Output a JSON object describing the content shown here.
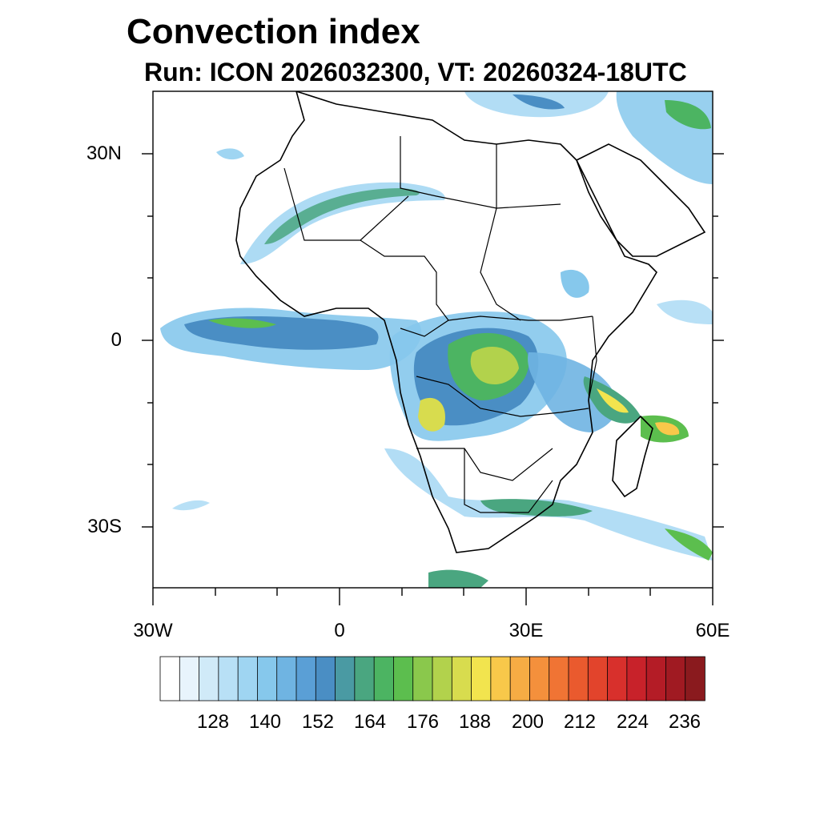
{
  "title": "Convection index",
  "subtitle": "Run: ICON 2026032300,  VT: 20260324-18UTC",
  "map": {
    "extent": {
      "lon_min": -30,
      "lon_max": 60,
      "lat_min": -40,
      "lat_max": 40
    },
    "y_axis_labels": [
      "30N",
      "0",
      "30S"
    ],
    "x_axis_labels": [
      "30W",
      "0",
      "30E",
      "60E"
    ]
  },
  "colorbar": {
    "colors": [
      "#ffffff",
      "#e8f4fc",
      "#d0eaf8",
      "#b8e0f6",
      "#9fd5f2",
      "#86c8ec",
      "#6fb4e2",
      "#5a9fd6",
      "#4a8ec4",
      "#4a9aa3",
      "#4aa680",
      "#4cb462",
      "#5cbe4e",
      "#8ac84c",
      "#b2d24c",
      "#d8dc4e",
      "#f2e44e",
      "#f8c84a",
      "#f6ac44",
      "#f4903c",
      "#f07434",
      "#ea5a2e",
      "#e2442c",
      "#d8302c",
      "#c8222a",
      "#b41c26",
      "#a01a22",
      "#8a1a1e"
    ],
    "tick_labels": [
      "128",
      "140",
      "152",
      "164",
      "176",
      "188",
      "200",
      "212",
      "224",
      "236"
    ]
  }
}
